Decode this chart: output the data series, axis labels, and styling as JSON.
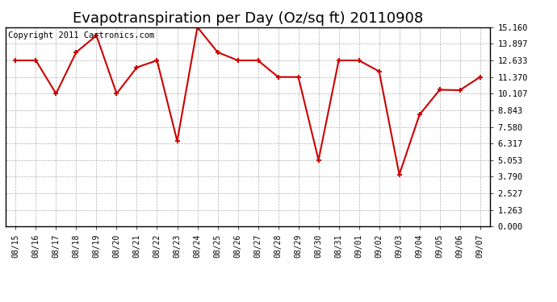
{
  "title": "Evapotranspiration per Day (Oz/sq ft) 20110908",
  "copyright": "Copyright 2011 Cartronics.com",
  "x_labels": [
    "08/15",
    "08/16",
    "08/17",
    "08/18",
    "08/19",
    "08/20",
    "08/21",
    "08/22",
    "08/23",
    "08/24",
    "08/25",
    "08/26",
    "08/27",
    "08/28",
    "08/29",
    "08/30",
    "08/31",
    "09/01",
    "09/02",
    "09/03",
    "09/04",
    "09/05",
    "09/06",
    "09/07"
  ],
  "y_values": [
    12.633,
    12.633,
    10.107,
    13.26,
    14.523,
    10.107,
    12.1,
    12.633,
    6.5,
    15.16,
    13.26,
    12.633,
    12.633,
    11.37,
    11.37,
    5.053,
    12.633,
    12.633,
    11.8,
    3.947,
    8.5,
    10.4,
    10.37,
    11.37
  ],
  "line_color": "#cc0000",
  "marker": "+",
  "marker_color": "#cc0000",
  "marker_size": 5,
  "marker_linewidth": 1.5,
  "line_width": 1.5,
  "y_ticks": [
    0.0,
    1.263,
    2.527,
    3.79,
    5.053,
    6.317,
    7.58,
    8.843,
    10.107,
    11.37,
    12.633,
    13.897,
    15.16
  ],
  "ylim": [
    0.0,
    15.16
  ],
  "background_color": "#ffffff",
  "grid_color": "#b0b0b0",
  "title_fontsize": 13,
  "copyright_fontsize": 7.5
}
